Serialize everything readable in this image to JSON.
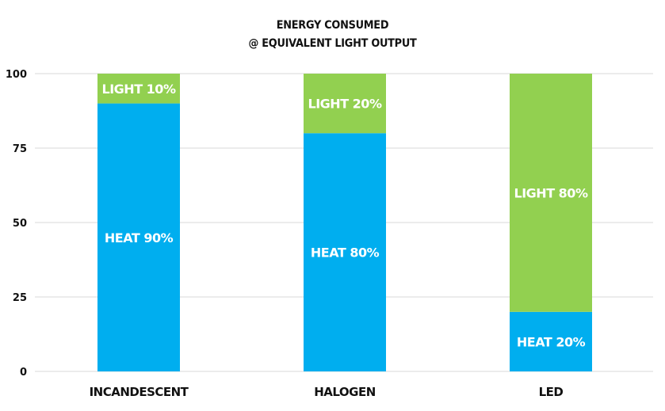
{
  "chart_data": {
    "type": "bar",
    "stacked": true,
    "title_lines": [
      "ENERGY CONSUMED",
      "@ EQUIVALENT LIGHT OUTPUT"
    ],
    "categories": [
      "INCANDESCENT",
      "HALOGEN",
      "LED"
    ],
    "series": [
      {
        "name": "HEAT",
        "color": "#00AEEF",
        "values": [
          90,
          80,
          20
        ],
        "labels": [
          "HEAT 90%",
          "HEAT 80%",
          "HEAT 20%"
        ]
      },
      {
        "name": "LIGHT",
        "color": "#92D050",
        "values": [
          10,
          20,
          80
        ],
        "labels": [
          "LIGHT 10%",
          "LIGHT 20%",
          "LIGHT 80%"
        ]
      }
    ],
    "ylim": [
      0,
      100
    ],
    "yticks": [
      0,
      25,
      50,
      75,
      100
    ],
    "grid": true,
    "legend": "none"
  }
}
